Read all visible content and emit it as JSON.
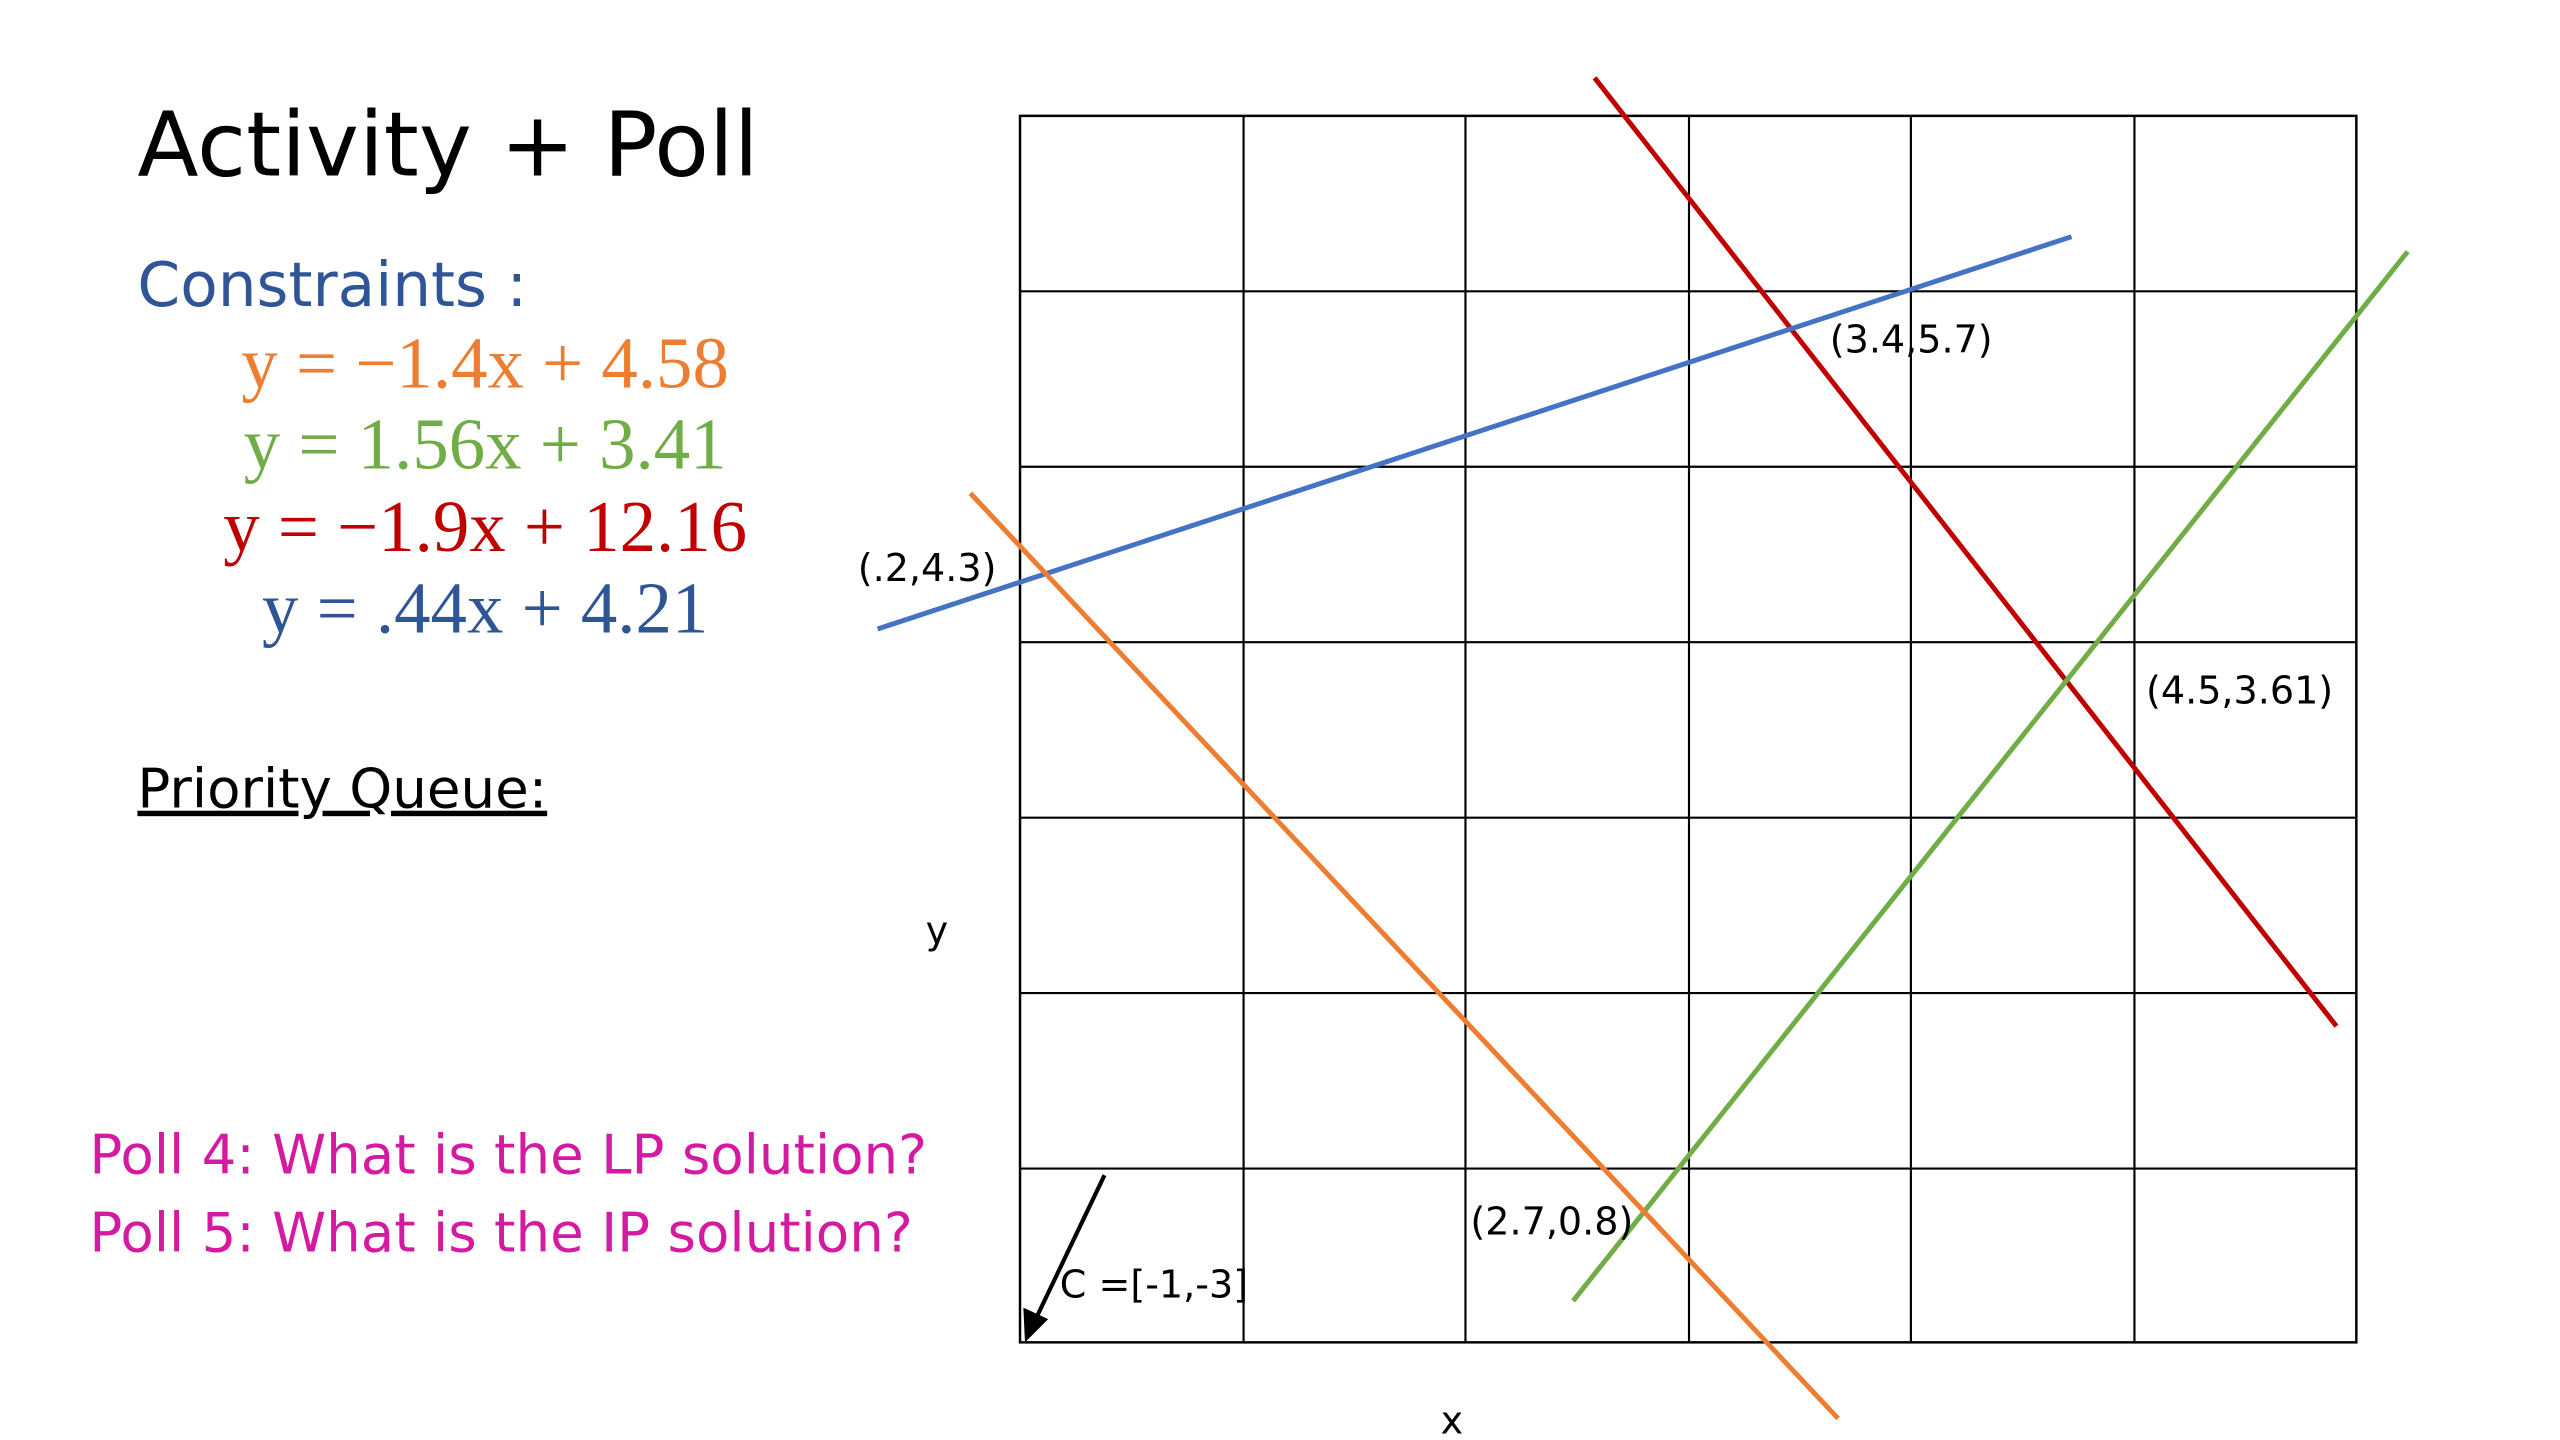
{
  "header": {
    "title": "Activity + Poll"
  },
  "constraints": {
    "label": "Constraints :",
    "equations": [
      "y = −1.4x + 4.58",
      "y = 1.56x + 3.41",
      "y = −1.9x + 12.16",
      "y =  .44x + 4.21"
    ]
  },
  "priority_queue": {
    "label": "Priority Queue:"
  },
  "polls": [
    "Poll 4: What is the LP solution?",
    "Poll 5: What is the IP solution?"
  ],
  "diagram": {
    "points": [
      "(.2,4.3)",
      "(3.4,5.7)",
      "(4.5,3.61)",
      "(2.7,0.8)"
    ],
    "vector": "C =[-1,-3]",
    "y_label": "y",
    "x_label": "x"
  }
}
